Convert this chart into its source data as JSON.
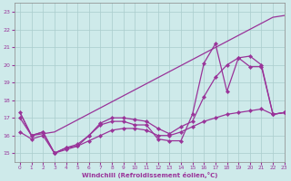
{
  "line1_x": [
    0,
    1,
    3,
    22,
    23
  ],
  "line1_y": [
    17.3,
    16.0,
    16.2,
    22.7,
    22.8
  ],
  "line2_x": [
    0,
    1,
    2,
    3,
    4,
    5,
    6,
    7,
    8,
    9,
    10,
    11,
    12,
    13,
    14,
    15,
    16,
    17,
    18,
    19,
    20,
    21,
    22,
    23
  ],
  "line2_y": [
    17.3,
    16.0,
    16.2,
    15.0,
    15.3,
    15.4,
    16.0,
    16.6,
    16.8,
    16.8,
    16.6,
    16.6,
    15.8,
    15.7,
    15.7,
    17.2,
    20.1,
    21.2,
    18.5,
    20.4,
    19.9,
    19.9,
    17.2,
    17.3
  ],
  "line3_x": [
    0,
    1,
    2,
    3,
    4,
    5,
    6,
    7,
    8,
    9,
    10,
    11,
    12,
    13,
    14,
    15,
    16,
    17,
    18,
    19,
    20,
    21,
    22,
    23
  ],
  "line3_y": [
    17.0,
    16.0,
    16.2,
    15.0,
    15.3,
    15.5,
    16.0,
    16.7,
    17.0,
    17.0,
    16.9,
    16.8,
    16.4,
    16.1,
    16.5,
    16.8,
    18.2,
    19.3,
    20.0,
    20.4,
    20.5,
    20.0,
    17.2,
    17.3
  ],
  "line4_x": [
    0,
    1,
    2,
    3,
    4,
    5,
    6,
    7,
    8,
    9,
    10,
    11,
    12,
    13,
    14,
    15,
    16,
    17,
    18,
    19,
    20,
    21,
    22,
    23
  ],
  "line4_y": [
    16.2,
    15.8,
    16.0,
    15.0,
    15.2,
    15.4,
    15.7,
    16.0,
    16.3,
    16.4,
    16.4,
    16.3,
    16.0,
    16.0,
    16.2,
    16.5,
    16.8,
    17.0,
    17.2,
    17.3,
    17.4,
    17.5,
    17.2,
    17.3
  ],
  "color": "#993399",
  "bg_color": "#ceeaea",
  "grid_color": "#aacccc",
  "xlabel": "Windchill (Refroidissement éolien,°C)",
  "xlim": [
    -0.5,
    23
  ],
  "ylim": [
    14.5,
    23.5
  ],
  "yticks": [
    15,
    16,
    17,
    18,
    19,
    20,
    21,
    22,
    23
  ],
  "xticks": [
    0,
    1,
    2,
    3,
    4,
    5,
    6,
    7,
    8,
    9,
    10,
    11,
    12,
    13,
    14,
    15,
    16,
    17,
    18,
    19,
    20,
    21,
    22,
    23
  ],
  "marker": "D",
  "markersize": 2.2,
  "linewidth": 0.9
}
